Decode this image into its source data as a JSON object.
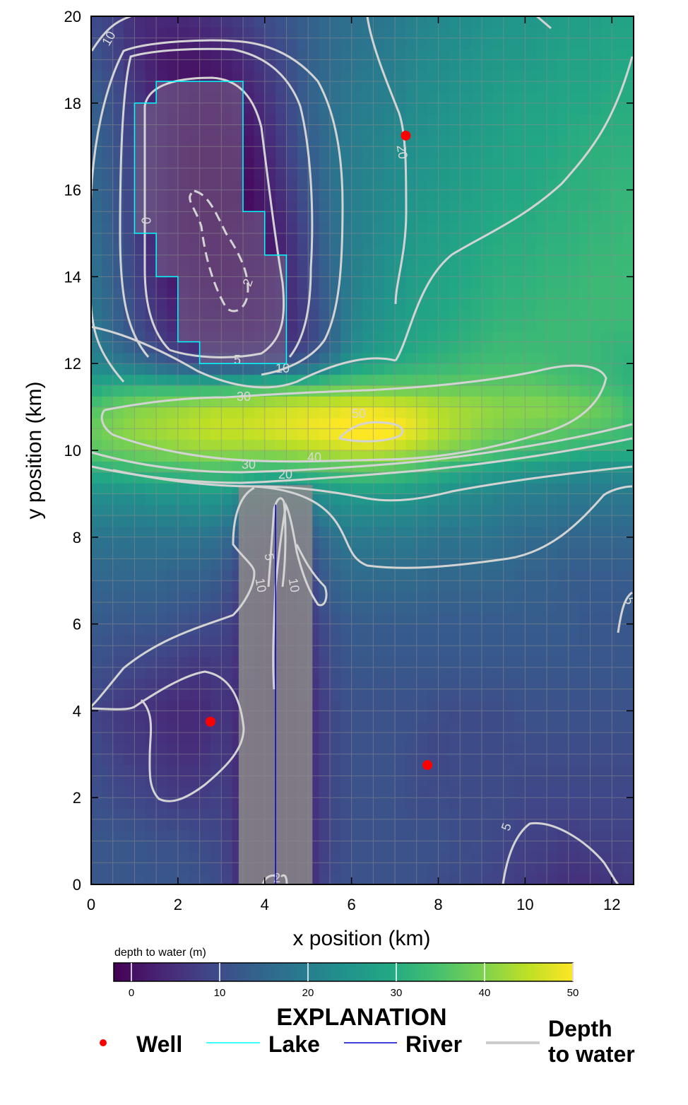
{
  "chart_data": {
    "type": "heatmap",
    "title": "",
    "xlabel": "x position (km)",
    "ylabel": "y position (km)",
    "xlim": [
      0,
      12.5
    ],
    "ylim": [
      0,
      20
    ],
    "xticks": [
      0,
      2,
      4,
      6,
      8,
      10,
      12
    ],
    "yticks": [
      0,
      2,
      4,
      6,
      8,
      10,
      12,
      14,
      16,
      18,
      20
    ],
    "colorbar": {
      "label": "depth to water (m)",
      "range": [
        -2,
        50
      ],
      "ticks": [
        0,
        10,
        20,
        30,
        40,
        50
      ],
      "colormap": "viridis"
    },
    "depth_field": {
      "x": [
        0,
        0.5,
        1,
        1.5,
        2,
        2.5,
        3,
        3.5,
        4,
        4.5,
        5,
        5.5,
        6,
        6.5,
        7,
        7.5,
        8,
        8.5,
        9,
        9.5,
        10,
        10.5,
        11,
        11.5,
        12,
        12.5
      ],
      "y": [
        0,
        1,
        2,
        3,
        4,
        5,
        6,
        7,
        8,
        9,
        9.5,
        10,
        10.5,
        11,
        11.5,
        12,
        12.5,
        13,
        14,
        15,
        16,
        17,
        18,
        19,
        20
      ],
      "values": [
        [
          12,
          12,
          12,
          12,
          12,
          11,
          10,
          4,
          2,
          2,
          4,
          10,
          11,
          11,
          11,
          11,
          10,
          10,
          9,
          8,
          7,
          6,
          5,
          5,
          6,
          7
        ],
        [
          12,
          12,
          12,
          11,
          11,
          10,
          9,
          4,
          2,
          2,
          4,
          9,
          11,
          11,
          11,
          11,
          11,
          10,
          10,
          9,
          8,
          8,
          7,
          8,
          8,
          8
        ],
        [
          11,
          10,
          9,
          8,
          7,
          7,
          8,
          4,
          2,
          2,
          4,
          9,
          11,
          11,
          11,
          10,
          10,
          10,
          10,
          10,
          9,
          9,
          9,
          9,
          9,
          9
        ],
        [
          10,
          8,
          7,
          6,
          5,
          5,
          7,
          4,
          2,
          2,
          4,
          9,
          11,
          11,
          11,
          10,
          9,
          10,
          10,
          10,
          10,
          10,
          10,
          10,
          10,
          10
        ],
        [
          9,
          7,
          6,
          5,
          4,
          4,
          6,
          4,
          1,
          2,
          4,
          9,
          11,
          11,
          11,
          11,
          10,
          10,
          10,
          10,
          11,
          11,
          11,
          11,
          11,
          11
        ],
        [
          11,
          10,
          9,
          8,
          7,
          6,
          7,
          5,
          1,
          2,
          5,
          10,
          12,
          12,
          12,
          12,
          12,
          12,
          12,
          12,
          12,
          12,
          12,
          12,
          12,
          12
        ],
        [
          13,
          12,
          12,
          12,
          11,
          10,
          9,
          6,
          2,
          3,
          6,
          11,
          13,
          13,
          13,
          13,
          13,
          13,
          13,
          13,
          13,
          13,
          13,
          12,
          12,
          12
        ],
        [
          15,
          15,
          15,
          15,
          14,
          14,
          12,
          8,
          3,
          4,
          8,
          14,
          16,
          16,
          16,
          16,
          15,
          15,
          15,
          15,
          14,
          14,
          13,
          13,
          13,
          13
        ],
        [
          18,
          18,
          18,
          18,
          18,
          18,
          17,
          12,
          8,
          8,
          12,
          17,
          19,
          19,
          19,
          19,
          18,
          18,
          18,
          17,
          16,
          16,
          15,
          15,
          15,
          15
        ],
        [
          24,
          24,
          24,
          25,
          25,
          26,
          26,
          22,
          20,
          20,
          22,
          25,
          26,
          26,
          26,
          25,
          24,
          23,
          22,
          21,
          20,
          20,
          19,
          19,
          19,
          19
        ],
        [
          30,
          31,
          32,
          33,
          33,
          34,
          34,
          33,
          32,
          32,
          33,
          34,
          35,
          35,
          34,
          33,
          31,
          29,
          27,
          26,
          25,
          24,
          23,
          23,
          23,
          23
        ],
        [
          36,
          38,
          39,
          40,
          41,
          42,
          42,
          42,
          42,
          43,
          44,
          45,
          46,
          46,
          45,
          43,
          41,
          39,
          37,
          35,
          34,
          33,
          32,
          31,
          31,
          31
        ],
        [
          38,
          40,
          42,
          43,
          44,
          45,
          46,
          46,
          47,
          48,
          49,
          50,
          52,
          53,
          51,
          48,
          45,
          43,
          41,
          40,
          39,
          38,
          37,
          36,
          35,
          33
        ],
        [
          35,
          38,
          40,
          41,
          42,
          43,
          44,
          44,
          45,
          46,
          47,
          47,
          48,
          48,
          47,
          46,
          44,
          43,
          42,
          41,
          41,
          41,
          40,
          39,
          37,
          34
        ],
        [
          28,
          30,
          31,
          31,
          31,
          31,
          31,
          32,
          33,
          34,
          35,
          36,
          37,
          37,
          37,
          37,
          37,
          37,
          37,
          37,
          37,
          36,
          35,
          34,
          33,
          31
        ],
        [
          22,
          20,
          18,
          15,
          12,
          10,
          10,
          10,
          11,
          12,
          14,
          20,
          26,
          28,
          30,
          31,
          32,
          33,
          34,
          34,
          34,
          34,
          33,
          33,
          32,
          31
        ],
        [
          20,
          16,
          12,
          8,
          5,
          3,
          3,
          3,
          4,
          5,
          8,
          14,
          22,
          25,
          27,
          29,
          30,
          31,
          32,
          33,
          33,
          33,
          33,
          33,
          32,
          32
        ],
        [
          19,
          15,
          10,
          6,
          3,
          1,
          1,
          1,
          2,
          4,
          8,
          14,
          21,
          24,
          26,
          28,
          29,
          30,
          31,
          32,
          32,
          33,
          33,
          33,
          33,
          33
        ],
        [
          18,
          14,
          9,
          4,
          1,
          0,
          -1,
          0,
          1,
          4,
          9,
          15,
          20,
          23,
          25,
          27,
          28,
          29,
          30,
          31,
          31,
          32,
          32,
          33,
          33,
          33
        ],
        [
          17,
          13,
          8,
          3,
          0,
          -1,
          -1,
          0,
          1,
          4,
          10,
          16,
          20,
          22,
          24,
          26,
          27,
          28,
          29,
          30,
          30,
          31,
          31,
          32,
          32,
          33
        ],
        [
          16,
          13,
          8,
          3,
          0,
          -1,
          -1,
          -1,
          2,
          6,
          12,
          17,
          20,
          22,
          23,
          25,
          26,
          27,
          28,
          29,
          29,
          30,
          31,
          31,
          32,
          32
        ],
        [
          15,
          12,
          8,
          3,
          0,
          -1,
          -1,
          0,
          3,
          8,
          13,
          17,
          20,
          21,
          23,
          24,
          25,
          26,
          27,
          28,
          29,
          29,
          30,
          31,
          31,
          31
        ],
        [
          14,
          11,
          7,
          3,
          1,
          0,
          0,
          2,
          5,
          9,
          14,
          17,
          19,
          20,
          21,
          23,
          24,
          25,
          26,
          27,
          28,
          28,
          29,
          29,
          30,
          30
        ],
        [
          12,
          9,
          5,
          2,
          1,
          1,
          2,
          4,
          7,
          10,
          14,
          16,
          18,
          19,
          20,
          22,
          23,
          24,
          25,
          26,
          26,
          27,
          28,
          28,
          29,
          29
        ],
        [
          10,
          8,
          5,
          4,
          4,
          5,
          6,
          8,
          10,
          12,
          14,
          16,
          17,
          18,
          19,
          21,
          22,
          23,
          24,
          25,
          25,
          26,
          27,
          27,
          28,
          28
        ]
      ]
    },
    "contour_labels": [
      "10",
      "20",
      "5",
      "10",
      "2",
      "30",
      "50",
      "40",
      "30",
      "20",
      "5",
      "10",
      "10",
      "5",
      "5",
      "0",
      "2"
    ],
    "series": [
      {
        "name": "Well",
        "type": "scatter",
        "color": "#ff0000",
        "x": [
          7.25,
          2.75,
          7.75
        ],
        "y": [
          17.25,
          3.75,
          2.75
        ]
      },
      {
        "name": "Lake",
        "type": "outline",
        "color": "#00ffff",
        "x": [
          1.0,
          1.5,
          1.5,
          3.5,
          3.5,
          4.0,
          4.0,
          4.5,
          4.5,
          2.5,
          2.5,
          2.0,
          2.0,
          1.5,
          1.5,
          1.0,
          1.0
        ],
        "y": [
          18.0,
          18.0,
          18.5,
          18.5,
          15.5,
          15.5,
          14.5,
          14.5,
          12.0,
          12.0,
          12.5,
          12.5,
          14.0,
          14.0,
          15.0,
          15.0,
          18.0
        ]
      },
      {
        "name": "River",
        "type": "line",
        "color": "#0000cc",
        "x": [
          4.25,
          4.25
        ],
        "y": [
          0,
          8.75
        ]
      }
    ],
    "legend": {
      "title": "EXPLANATION",
      "placement": "bottom",
      "items": [
        {
          "label": "Well",
          "color": "#ff0000",
          "symbol": "dot"
        },
        {
          "label": "Lake",
          "color": "#00ffff",
          "symbol": "line"
        },
        {
          "label": "River",
          "color": "#0000cc",
          "symbol": "line"
        },
        {
          "label": "Depth\nto water",
          "color": "#cccccc",
          "symbol": "line"
        }
      ]
    }
  }
}
